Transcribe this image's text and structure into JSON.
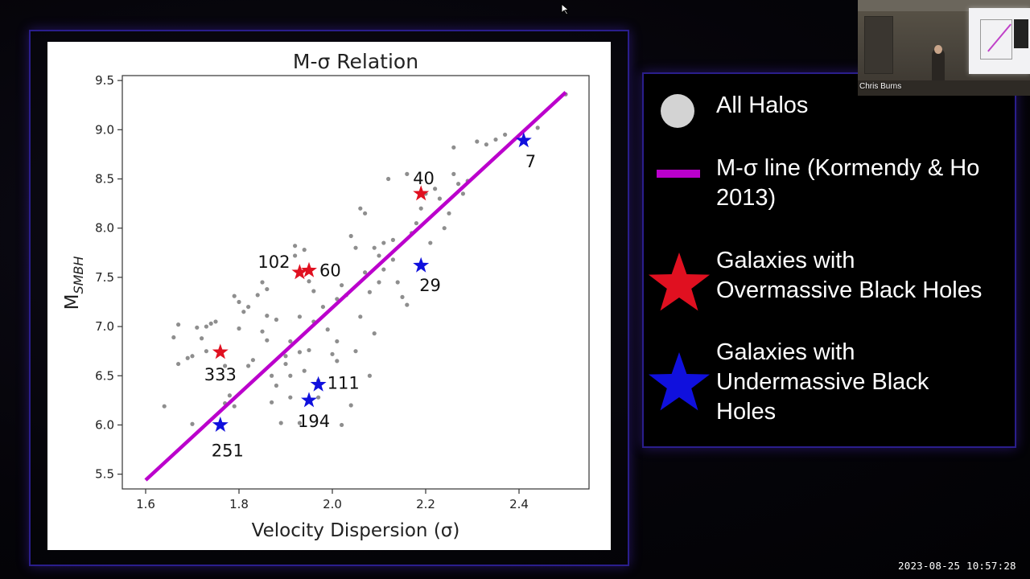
{
  "webcam": {
    "name": "Chris Burns"
  },
  "timestamp": "2023-08-25 10:57:28",
  "legend": {
    "items": [
      {
        "label": "All Halos",
        "marker": "gray-circle-icon",
        "color": "#d3d3d3"
      },
      {
        "label": "M-σ line (Kormendy & Ho 2013)",
        "line1": "M-σ line (Kormendy & Ho",
        "line2": "2013)",
        "marker": "magenta-line-icon",
        "color": "#bb00cc"
      },
      {
        "label": "Galaxies with Overmassive Black Holes",
        "line1": "Galaxies with",
        "line2": "Overmassive Black Holes",
        "marker": "red-star-icon",
        "color": "#e01020"
      },
      {
        "label": "Galaxies with Undermassive Black Holes",
        "line1": "Galaxies with",
        "line2": "Undermassive Black",
        "line3": "Holes",
        "marker": "blue-star-icon",
        "color": "#1010dd"
      }
    ]
  },
  "chart_data": {
    "type": "scatter",
    "title": "M-σ Relation",
    "xlabel": "Velocity Dispersion (σ)",
    "ylabel": "M_SMBH",
    "xlim": [
      1.55,
      2.55
    ],
    "ylim": [
      5.35,
      9.55
    ],
    "xticks": [
      1.6,
      1.8,
      2.0,
      2.2,
      2.4
    ],
    "xtick_labels": [
      "1.6",
      "1.8",
      "2.0",
      "2.2",
      "2.4"
    ],
    "yticks": [
      5.5,
      6.0,
      6.5,
      7.0,
      7.5,
      8.0,
      8.5,
      9.0,
      9.5
    ],
    "ytick_labels": [
      "5.5",
      "6.0",
      "6.5",
      "7.0",
      "7.5",
      "8.0",
      "8.5",
      "9.0",
      "9.5"
    ],
    "grid": false,
    "line": {
      "name": "M-σ line (Kormendy & Ho 2013)",
      "x": [
        1.6,
        2.5
      ],
      "y": [
        5.44,
        9.38
      ],
      "color": "#bb00cc"
    },
    "halos": {
      "name": "All Halos",
      "color": "#7a7a7a",
      "points": [
        [
          1.64,
          6.19
        ],
        [
          1.66,
          6.89
        ],
        [
          1.67,
          7.02
        ],
        [
          1.67,
          6.62
        ],
        [
          1.69,
          6.68
        ],
        [
          1.7,
          6.01
        ],
        [
          1.71,
          6.99
        ],
        [
          1.72,
          6.88
        ],
        [
          1.73,
          6.75
        ],
        [
          1.73,
          7.0
        ],
        [
          1.74,
          7.03
        ],
        [
          1.75,
          7.05
        ],
        [
          1.77,
          6.6
        ],
        [
          1.77,
          6.22
        ],
        [
          1.78,
          6.3
        ],
        [
          1.79,
          6.19
        ],
        [
          1.79,
          7.31
        ],
        [
          1.8,
          7.25
        ],
        [
          1.8,
          6.98
        ],
        [
          1.81,
          7.15
        ],
        [
          1.82,
          7.2
        ],
        [
          1.82,
          6.6
        ],
        [
          1.83,
          6.66
        ],
        [
          1.84,
          7.32
        ],
        [
          1.85,
          7.45
        ],
        [
          1.85,
          6.95
        ],
        [
          1.86,
          7.38
        ],
        [
          1.86,
          7.11
        ],
        [
          1.86,
          6.86
        ],
        [
          1.87,
          6.5
        ],
        [
          1.87,
          6.23
        ],
        [
          1.88,
          6.4
        ],
        [
          1.88,
          7.07
        ],
        [
          1.89,
          6.02
        ],
        [
          1.9,
          6.7
        ],
        [
          1.9,
          6.62
        ],
        [
          1.91,
          6.85
        ],
        [
          1.91,
          6.5
        ],
        [
          1.91,
          6.28
        ],
        [
          1.92,
          7.82
        ],
        [
          1.92,
          7.72
        ],
        [
          1.93,
          6.02
        ],
        [
          1.93,
          7.1
        ],
        [
          1.93,
          6.74
        ],
        [
          1.94,
          7.78
        ],
        [
          1.94,
          6.55
        ],
        [
          1.95,
          6.76
        ],
        [
          1.95,
          7.46
        ],
        [
          1.96,
          7.36
        ],
        [
          1.96,
          7.05
        ],
        [
          1.97,
          6.45
        ],
        [
          1.97,
          6.28
        ],
        [
          1.98,
          7.2
        ],
        [
          1.99,
          6.97
        ],
        [
          2.0,
          6.72
        ],
        [
          2.01,
          6.65
        ],
        [
          2.01,
          6.85
        ],
        [
          2.01,
          7.28
        ],
        [
          2.02,
          7.42
        ],
        [
          2.02,
          6.0
        ],
        [
          2.03,
          7.32
        ],
        [
          2.04,
          7.92
        ],
        [
          2.04,
          6.2
        ],
        [
          2.05,
          7.8
        ],
        [
          2.05,
          6.75
        ],
        [
          2.06,
          8.2
        ],
        [
          2.06,
          7.1
        ],
        [
          2.07,
          7.55
        ],
        [
          2.07,
          8.15
        ],
        [
          2.08,
          7.35
        ],
        [
          2.08,
          6.5
        ],
        [
          2.09,
          7.8
        ],
        [
          2.09,
          6.93
        ],
        [
          2.1,
          7.72
        ],
        [
          2.1,
          7.45
        ],
        [
          2.11,
          7.85
        ],
        [
          2.11,
          7.58
        ],
        [
          2.12,
          8.5
        ],
        [
          2.13,
          7.68
        ],
        [
          2.13,
          7.88
        ],
        [
          2.14,
          7.45
        ],
        [
          2.15,
          7.3
        ],
        [
          2.16,
          8.55
        ],
        [
          2.16,
          7.22
        ],
        [
          2.17,
          7.95
        ],
        [
          2.18,
          8.05
        ],
        [
          2.19,
          8.2
        ],
        [
          2.2,
          8.35
        ],
        [
          2.21,
          7.85
        ],
        [
          2.22,
          8.4
        ],
        [
          2.23,
          8.3
        ],
        [
          2.24,
          8.0
        ],
        [
          2.25,
          8.15
        ],
        [
          2.26,
          8.55
        ],
        [
          2.26,
          8.82
        ],
        [
          2.27,
          8.45
        ],
        [
          2.28,
          8.35
        ],
        [
          2.29,
          8.48
        ],
        [
          2.31,
          8.88
        ],
        [
          2.33,
          8.85
        ],
        [
          2.35,
          8.9
        ],
        [
          2.37,
          8.95
        ],
        [
          2.44,
          9.02
        ],
        [
          2.5,
          9.36
        ],
        [
          1.7,
          6.7
        ]
      ]
    },
    "overmassive": {
      "name": "Galaxies with Overmassive Black Holes",
      "color": "#e01020",
      "points": [
        {
          "id": "40",
          "x": 2.19,
          "y": 8.35
        },
        {
          "id": "102",
          "x": 1.93,
          "y": 7.55
        },
        {
          "id": "60",
          "x": 1.95,
          "y": 7.57
        },
        {
          "id": "333",
          "x": 1.76,
          "y": 6.74
        }
      ]
    },
    "undermassive": {
      "name": "Galaxies with Undermassive Black Holes",
      "color": "#1010dd",
      "points": [
        {
          "id": "7",
          "x": 2.41,
          "y": 8.89
        },
        {
          "id": "29",
          "x": 2.19,
          "y": 7.62
        },
        {
          "id": "111",
          "x": 1.97,
          "y": 6.41
        },
        {
          "id": "194",
          "x": 1.95,
          "y": 6.25
        },
        {
          "id": "251",
          "x": 1.76,
          "y": 6.0
        }
      ]
    }
  }
}
